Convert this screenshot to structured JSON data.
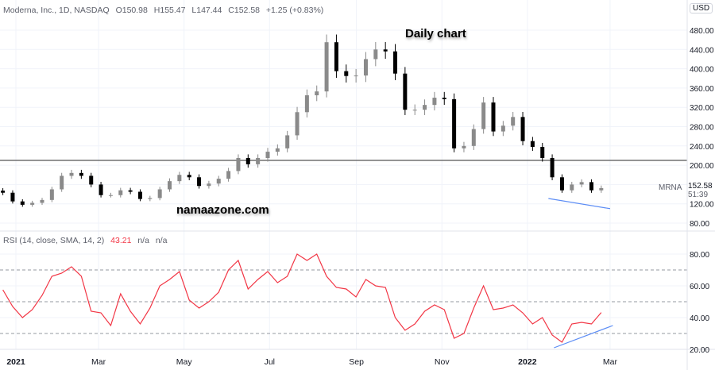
{
  "header": {
    "symbol_info": "Moderna, Inc., 1D, NASDAQ",
    "open": "O150.98",
    "high": "H155.47",
    "low": "L147.44",
    "close": "C152.58",
    "change": "+1.25 (+0.83%)"
  },
  "currency_button": "USD",
  "symbol_label": "MRNA",
  "last_price_label": "152.58",
  "countdown_label": "51:39",
  "overlays": {
    "title": "Daily chart",
    "watermark": "namaazone.com"
  },
  "rsi_legend": {
    "name": "RSI (14, close, SMA, 14, 2)",
    "value": "43.21",
    "extra1": "n/a",
    "extra2": "n/a"
  },
  "colors": {
    "up_candle": "#8a8a8a",
    "down_candle": "#000000",
    "rsi_line": "#f23645",
    "trendline": "#5b8cf5",
    "level_line": "#555555",
    "grid": "#f0f3fa"
  },
  "chart_data": [
    {
      "type": "candlestick",
      "title": "Moderna, Inc., 1D, NASDAQ",
      "ylim": [
        70,
        500
      ],
      "y_ticks": [
        "480.00",
        "440.00",
        "400.00",
        "360.00",
        "320.00",
        "280.00",
        "240.00",
        "200.00",
        "120.00",
        "80.00"
      ],
      "y_tick_values": [
        480,
        440,
        400,
        360,
        320,
        280,
        240,
        200,
        120,
        80
      ],
      "x_ticks": [
        {
          "label": "2021",
          "date": "2021-01-01",
          "bold": true
        },
        {
          "label": "Mar",
          "date": "2021-03-01"
        },
        {
          "label": "May",
          "date": "2021-05-01"
        },
        {
          "label": "Jul",
          "date": "2021-07-01"
        },
        {
          "label": "Sep",
          "date": "2021-09-01"
        },
        {
          "label": "Nov",
          "date": "2021-11-01"
        },
        {
          "label": "2022",
          "date": "2022-01-01",
          "bold": true
        },
        {
          "label": "Mar",
          "date": "2022-03-01"
        }
      ],
      "grid": true,
      "dates": [
        "2020-12-21",
        "2020-12-28",
        "2021-01-04",
        "2021-01-11",
        "2021-01-18",
        "2021-01-25",
        "2021-02-01",
        "2021-02-08",
        "2021-02-15",
        "2021-02-22",
        "2021-03-01",
        "2021-03-08",
        "2021-03-15",
        "2021-03-22",
        "2021-03-29",
        "2021-04-05",
        "2021-04-12",
        "2021-04-19",
        "2021-04-26",
        "2021-05-03",
        "2021-05-10",
        "2021-05-17",
        "2021-05-24",
        "2021-05-31",
        "2021-06-07",
        "2021-06-14",
        "2021-06-21",
        "2021-06-28",
        "2021-07-05",
        "2021-07-12",
        "2021-07-19",
        "2021-07-26",
        "2021-08-02",
        "2021-08-09",
        "2021-08-16",
        "2021-08-23",
        "2021-08-30",
        "2021-09-06",
        "2021-09-13",
        "2021-09-20",
        "2021-09-27",
        "2021-10-04",
        "2021-10-11",
        "2021-10-18",
        "2021-10-25",
        "2021-11-01",
        "2021-11-08",
        "2021-11-15",
        "2021-11-22",
        "2021-11-29",
        "2021-12-06",
        "2021-12-13",
        "2021-12-20",
        "2021-12-27",
        "2022-01-03",
        "2022-01-10",
        "2022-01-17",
        "2022-01-24",
        "2022-01-31",
        "2022-02-07",
        "2022-02-14",
        "2022-02-21"
      ],
      "close": [
        143,
        125,
        118,
        122,
        128,
        150,
        178,
        184,
        178,
        160,
        138,
        138,
        148,
        145,
        130,
        132,
        150,
        167,
        180,
        175,
        157,
        162,
        172,
        188,
        215,
        202,
        215,
        228,
        235,
        262,
        310,
        345,
        353,
        455,
        395,
        385,
        386,
        420,
        440,
        436,
        390,
        315,
        315,
        325,
        340,
        337,
        235,
        240,
        275,
        330,
        270,
        282,
        300,
        250,
        238,
        215,
        175,
        148,
        160,
        165,
        148,
        152.58
      ],
      "horizontal_level": 210,
      "trendline": {
        "from": {
          "date": "2022-01-16",
          "price": 131
        },
        "to": {
          "date": "2022-03-01",
          "price": 110
        }
      }
    },
    {
      "type": "line",
      "title": "RSI (14, close, SMA, 14, 2)",
      "ylim": [
        15,
        90
      ],
      "y_ticks": [
        "80.00",
        "60.00",
        "40.00",
        "20.00"
      ],
      "y_tick_values": [
        80,
        60,
        40,
        20
      ],
      "bands": [
        70,
        50,
        30
      ],
      "values": [
        57.5,
        47,
        40,
        45,
        54,
        66,
        68,
        72,
        66,
        44,
        43,
        35,
        55,
        44,
        36,
        46,
        60,
        64,
        69,
        51,
        46,
        50,
        56,
        70,
        76,
        58,
        64,
        69,
        62,
        66,
        80,
        76,
        80,
        66,
        59,
        58,
        53,
        64,
        60,
        59,
        40,
        32,
        36,
        44,
        48,
        45,
        27,
        30,
        46,
        60,
        45,
        46,
        48,
        43,
        36,
        40,
        29,
        24.5,
        36,
        37,
        36,
        43.21
      ],
      "trendline": {
        "from": {
          "date": "2022-01-20",
          "value": 21
        },
        "to": {
          "date": "2022-03-03",
          "value": 35
        }
      }
    }
  ]
}
